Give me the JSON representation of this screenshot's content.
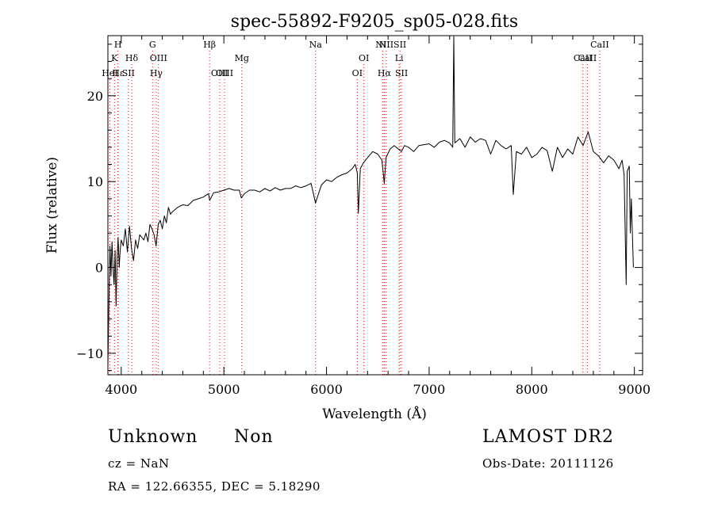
{
  "chart_data": {
    "type": "line",
    "title": "spec-55892-F9205_sp05-028.fits",
    "xlabel": "Wavelength (Å)",
    "ylabel": "Flux (relative)",
    "xlim": [
      3870,
      9080
    ],
    "ylim": [
      -12.5,
      27
    ],
    "x_ticks": [
      4000,
      5000,
      6000,
      7000,
      8000,
      9000
    ],
    "y_ticks": [
      -10,
      0,
      10,
      20
    ],
    "grid": false,
    "line_color": "#000000",
    "marker_color": "#ff0000",
    "lines": [
      {
        "label": "H",
        "x": 3968,
        "row": 0
      },
      {
        "label": "K",
        "x": 3934,
        "row": 1
      },
      {
        "label": "HeI",
        "x": 3889,
        "row": 2
      },
      {
        "label": "Hε",
        "x": 3970,
        "row": 2
      },
      {
        "label": "Hδ",
        "x": 4102,
        "row": 1
      },
      {
        "label": "SII",
        "x": 4070,
        "row": 2
      },
      {
        "label": "G",
        "x": 4305,
        "row": 0
      },
      {
        "label": "OIII",
        "x": 4363,
        "row": 1
      },
      {
        "label": "Hγ",
        "x": 4341,
        "row": 2
      },
      {
        "label": "Hβ",
        "x": 4861,
        "row": 0
      },
      {
        "label": "OIII",
        "x": 4959,
        "row": 2
      },
      {
        "label": "OIII",
        "x": 5007,
        "row": 2
      },
      {
        "label": "Mg",
        "x": 5175,
        "row": 1
      },
      {
        "label": "Na",
        "x": 5893,
        "row": 0
      },
      {
        "label": "OI",
        "x": 6364,
        "row": 1
      },
      {
        "label": "OI",
        "x": 6300,
        "row": 2
      },
      {
        "label": "NII",
        "x": 6548,
        "row": 0
      },
      {
        "label": "NII",
        "x": 6583,
        "row": 0
      },
      {
        "label": "Hα",
        "x": 6563,
        "row": 2
      },
      {
        "label": "SII",
        "x": 6716,
        "row": 0
      },
      {
        "label": "Li",
        "x": 6708,
        "row": 1
      },
      {
        "label": "SII",
        "x": 6731,
        "row": 2
      },
      {
        "label": "CaII",
        "x": 8498,
        "row": 1
      },
      {
        "label": "CaII",
        "x": 8542,
        "row": 1
      },
      {
        "label": "CaII",
        "x": 8662,
        "row": 0
      }
    ],
    "series": [
      {
        "values": [
          [
            3870,
            -11.5
          ],
          [
            3880,
            -4
          ],
          [
            3890,
            2.5
          ],
          [
            3900,
            -1
          ],
          [
            3910,
            3
          ],
          [
            3920,
            0
          ],
          [
            3930,
            -2
          ],
          [
            3940,
            2
          ],
          [
            3950,
            -4.5
          ],
          [
            3960,
            1
          ],
          [
            3970,
            3.5
          ],
          [
            3980,
            0
          ],
          [
            3990,
            2
          ],
          [
            4000,
            3.2
          ],
          [
            4020,
            2.5
          ],
          [
            4040,
            4.5
          ],
          [
            4060,
            1.8
          ],
          [
            4080,
            4.8
          ],
          [
            4100,
            2.2
          ],
          [
            4120,
            0.8
          ],
          [
            4140,
            3.2
          ],
          [
            4160,
            2.2
          ],
          [
            4180,
            3.8
          ],
          [
            4200,
            3.5
          ],
          [
            4220,
            3.2
          ],
          [
            4240,
            4
          ],
          [
            4260,
            3
          ],
          [
            4280,
            5
          ],
          [
            4300,
            4.5
          ],
          [
            4320,
            3.8
          ],
          [
            4340,
            2.5
          ],
          [
            4360,
            5
          ],
          [
            4380,
            5.5
          ],
          [
            4400,
            4.5
          ],
          [
            4420,
            6
          ],
          [
            4440,
            5.2
          ],
          [
            4460,
            7
          ],
          [
            4480,
            6.2
          ],
          [
            4500,
            6.5
          ],
          [
            4550,
            7
          ],
          [
            4600,
            7.3
          ],
          [
            4650,
            7.2
          ],
          [
            4700,
            7.8
          ],
          [
            4750,
            8
          ],
          [
            4800,
            8.2
          ],
          [
            4850,
            8.6
          ],
          [
            4862,
            7.8
          ],
          [
            4900,
            8.7
          ],
          [
            4950,
            8.8
          ],
          [
            5000,
            9
          ],
          [
            5050,
            9.2
          ],
          [
            5100,
            9
          ],
          [
            5150,
            9
          ],
          [
            5170,
            8.1
          ],
          [
            5200,
            8.6
          ],
          [
            5250,
            9
          ],
          [
            5300,
            9
          ],
          [
            5350,
            8.8
          ],
          [
            5400,
            9.2
          ],
          [
            5450,
            8.9
          ],
          [
            5500,
            9.3
          ],
          [
            5550,
            9
          ],
          [
            5600,
            9.2
          ],
          [
            5650,
            9.2
          ],
          [
            5700,
            9.5
          ],
          [
            5750,
            9.3
          ],
          [
            5800,
            9.5
          ],
          [
            5850,
            9.8
          ],
          [
            5893,
            7.5
          ],
          [
            5950,
            9.6
          ],
          [
            6000,
            10.2
          ],
          [
            6050,
            10
          ],
          [
            6100,
            10.5
          ],
          [
            6150,
            10.8
          ],
          [
            6200,
            11
          ],
          [
            6250,
            11.5
          ],
          [
            6280,
            12
          ],
          [
            6300,
            11
          ],
          [
            6310,
            6.3
          ],
          [
            6330,
            11.5
          ],
          [
            6360,
            12.2
          ],
          [
            6400,
            12.8
          ],
          [
            6450,
            13.5
          ],
          [
            6500,
            13.2
          ],
          [
            6540,
            12.5
          ],
          [
            6563,
            9.8
          ],
          [
            6580,
            12.8
          ],
          [
            6620,
            13.8
          ],
          [
            6660,
            14.2
          ],
          [
            6700,
            13.8
          ],
          [
            6730,
            13.5
          ],
          [
            6760,
            14.2
          ],
          [
            6800,
            14
          ],
          [
            6850,
            13.5
          ],
          [
            6900,
            14.2
          ],
          [
            6950,
            14.3
          ],
          [
            7000,
            14.4
          ],
          [
            7050,
            14
          ],
          [
            7100,
            14.6
          ],
          [
            7150,
            14.8
          ],
          [
            7200,
            14.5
          ],
          [
            7230,
            14
          ],
          [
            7240,
            26.9
          ],
          [
            7250,
            14.5
          ],
          [
            7300,
            15
          ],
          [
            7350,
            14
          ],
          [
            7400,
            15.2
          ],
          [
            7450,
            14.6
          ],
          [
            7500,
            15
          ],
          [
            7550,
            14.8
          ],
          [
            7600,
            13.2
          ],
          [
            7650,
            14.8
          ],
          [
            7700,
            14.2
          ],
          [
            7750,
            13.8
          ],
          [
            7800,
            14.2
          ],
          [
            7820,
            8.5
          ],
          [
            7850,
            13.5
          ],
          [
            7900,
            13.2
          ],
          [
            7950,
            14
          ],
          [
            8000,
            12.8
          ],
          [
            8050,
            13.2
          ],
          [
            8100,
            14
          ],
          [
            8150,
            13.6
          ],
          [
            8200,
            11.2
          ],
          [
            8250,
            14
          ],
          [
            8300,
            12.8
          ],
          [
            8350,
            13.8
          ],
          [
            8400,
            13.2
          ],
          [
            8450,
            15.2
          ],
          [
            8500,
            14.2
          ],
          [
            8550,
            15.8
          ],
          [
            8600,
            13.5
          ],
          [
            8650,
            13
          ],
          [
            8700,
            12.2
          ],
          [
            8750,
            13
          ],
          [
            8800,
            12.5
          ],
          [
            8850,
            11.5
          ],
          [
            8880,
            12.5
          ],
          [
            8900,
            10.8
          ],
          [
            8920,
            -2
          ],
          [
            8930,
            11.2
          ],
          [
            8950,
            11.8
          ],
          [
            8960,
            4
          ],
          [
            8970,
            8
          ],
          [
            8990,
            0
          ]
        ]
      }
    ]
  },
  "info": {
    "class": "Unknown",
    "subclass": "Non",
    "survey": "LAMOST DR2",
    "cz": "cz = NaN",
    "obs_date": "Obs-Date: 20111126",
    "coords": "RA = 122.66355, DEC =    5.18290"
  }
}
